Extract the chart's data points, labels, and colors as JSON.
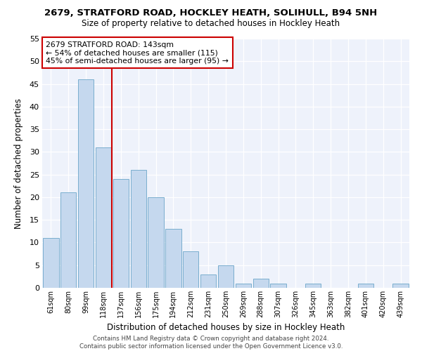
{
  "title1": "2679, STRATFORD ROAD, HOCKLEY HEATH, SOLIHULL, B94 5NH",
  "title2": "Size of property relative to detached houses in Hockley Heath",
  "xlabel": "Distribution of detached houses by size in Hockley Heath",
  "ylabel": "Number of detached properties",
  "categories": [
    "61sqm",
    "80sqm",
    "99sqm",
    "118sqm",
    "137sqm",
    "156sqm",
    "175sqm",
    "194sqm",
    "212sqm",
    "231sqm",
    "250sqm",
    "269sqm",
    "288sqm",
    "307sqm",
    "326sqm",
    "345sqm",
    "363sqm",
    "382sqm",
    "401sqm",
    "420sqm",
    "439sqm"
  ],
  "values": [
    11,
    21,
    46,
    31,
    24,
    26,
    20,
    13,
    8,
    3,
    5,
    1,
    2,
    1,
    0,
    1,
    0,
    0,
    1,
    0,
    1
  ],
  "bar_color": "#c5d8ee",
  "bar_edge_color": "#7aaece",
  "vline_color": "#cc0000",
  "vline_x": 3.5,
  "annotation_title": "2679 STRATFORD ROAD: 143sqm",
  "annotation_line1": "← 54% of detached houses are smaller (115)",
  "annotation_line2": "45% of semi-detached houses are larger (95) →",
  "annotation_box_color": "#ffffff",
  "annotation_box_edge": "#cc0000",
  "ylim": [
    0,
    55
  ],
  "yticks": [
    0,
    5,
    10,
    15,
    20,
    25,
    30,
    35,
    40,
    45,
    50,
    55
  ],
  "footer1": "Contains HM Land Registry data © Crown copyright and database right 2024.",
  "footer2": "Contains public sector information licensed under the Open Government Licence v3.0.",
  "bg_color": "#ffffff",
  "plot_bg_color": "#eef2fb"
}
